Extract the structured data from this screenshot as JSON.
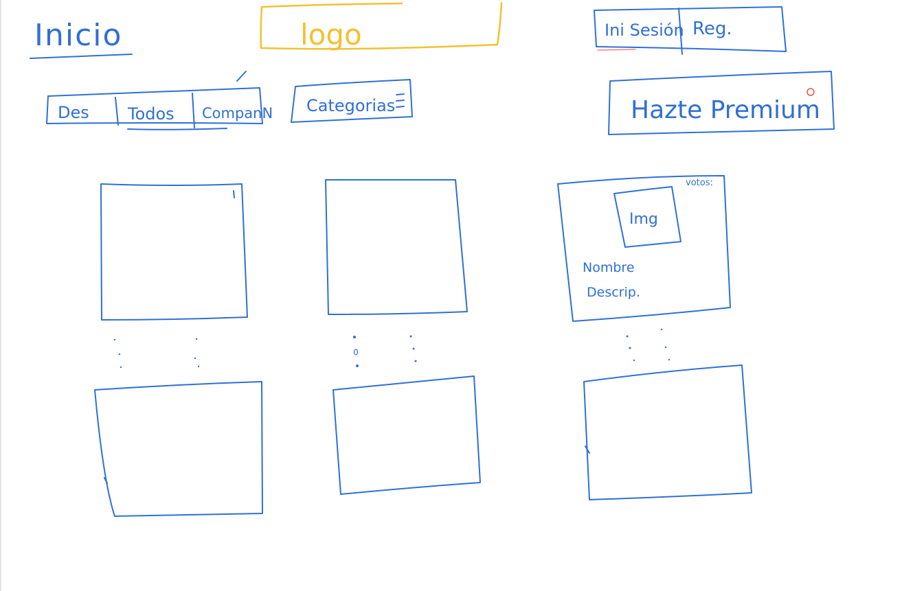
{
  "colors": {
    "ink_blue": "#2f6fd6",
    "ink_yellow": "#f2c12e",
    "ink_red": "#e05050",
    "ink_pink": "#f08080"
  },
  "header": {
    "title": "Inicio",
    "logo": "logo",
    "auth": {
      "login": "Ini Sesión",
      "register": "Reg."
    }
  },
  "filters": {
    "tabs": [
      "Des",
      "Todos",
      "CompanN"
    ],
    "categories": {
      "label": "Categorias",
      "icon": "hamburger-icon"
    }
  },
  "premium": {
    "label": "Hazte Premium"
  },
  "card_detail": {
    "votes": "votos:",
    "image": "Img",
    "name": "Nombre",
    "description": "Descrip."
  }
}
